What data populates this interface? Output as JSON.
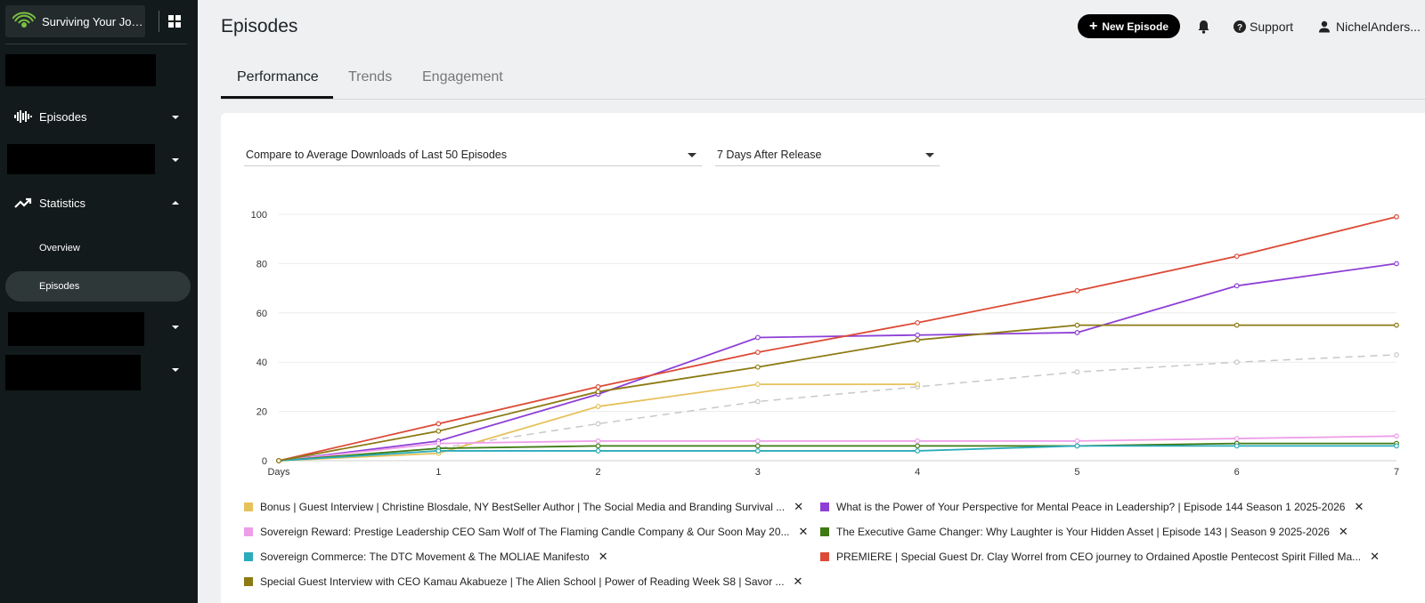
{
  "sidebar": {
    "brand_name": "Surviving Your Jour...",
    "nav": [
      {
        "label": "Episodes",
        "icon": "audio-wave-icon",
        "expanded": false
      },
      {
        "label": "Statistics",
        "icon": "trending-up-icon",
        "expanded": true
      }
    ],
    "sub_items": [
      {
        "label": "Overview",
        "active": false
      },
      {
        "label": "Episodes",
        "active": true
      }
    ]
  },
  "header": {
    "title": "Episodes",
    "new_episode_label": "New Episode",
    "support_label": "Support",
    "user_label": "NichelAnders..."
  },
  "tabs": [
    {
      "label": "Performance",
      "active": true
    },
    {
      "label": "Trends",
      "active": false
    },
    {
      "label": "Engagement",
      "active": false
    }
  ],
  "filters": {
    "compare": "Compare to Average Downloads of Last 50 Episodes",
    "range": "7 Days After Release"
  },
  "chart_data": {
    "type": "line",
    "x": [
      0,
      1,
      2,
      3,
      4,
      5,
      6,
      7
    ],
    "x_tick_labels": [
      "Days",
      "1",
      "2",
      "3",
      "4",
      "5",
      "6",
      "7"
    ],
    "y_ticks": [
      0,
      20,
      40,
      60,
      80,
      100
    ],
    "ylim": [
      0,
      100
    ],
    "xlim": [
      0,
      7
    ],
    "grid": true,
    "legend_placement": "bottom",
    "average": {
      "color": "#c8c8c8",
      "values": [
        0,
        5,
        15,
        24,
        30,
        36,
        40,
        43
      ]
    },
    "series": [
      {
        "name": "Bonus | Guest Interview | Christine Blosdale, NY BestSeller Author | The Social Media and Branding Survival ...",
        "color": "#e6c25c",
        "values": [
          0,
          3,
          22,
          31,
          31,
          null,
          null,
          null
        ]
      },
      {
        "name": "What is the Power of Your Perspective for Mental Peace in Leadership? | Episode 144 Season 1 2025-2026",
        "color": "#8e3fd6",
        "values": [
          0,
          8,
          27,
          50,
          51,
          52,
          71,
          80
        ]
      },
      {
        "name": "Sovereign Reward: Prestige Leadership CEO Sam Wolf of The Flaming Candle Company & Our Soon May 20...",
        "color": "#ee9ee8",
        "values": [
          0,
          7,
          8,
          8,
          8,
          8,
          9,
          10
        ]
      },
      {
        "name": "The Executive Game Changer: Why Laughter is Your Hidden Asset | Episode 143 | Season 9 2025-2026",
        "color": "#3e7a12",
        "values": [
          0,
          5,
          6,
          6,
          6,
          6,
          7,
          7
        ]
      },
      {
        "name": "Sovereign Commerce: The DTC Movement & The MOLIAE Manifesto",
        "color": "#2aacbb",
        "values": [
          0,
          4,
          4,
          4,
          4,
          6,
          6,
          6
        ]
      },
      {
        "name": "PREMIERE | Special Guest Dr. Clay Worrel from CEO journey to Ordained Apostle Pentecost Spirit Filled Ma...",
        "color": "#dc4a36",
        "values": [
          0,
          15,
          30,
          44,
          56,
          69,
          83,
          99
        ]
      },
      {
        "name": "Special Guest Interview with CEO Kamau Akabueze | The Alien School | Power of Reading Week S8 | Savor ...",
        "color": "#8c7a12",
        "values": [
          0,
          12,
          28,
          38,
          49,
          55,
          55,
          55
        ]
      }
    ]
  },
  "colors": {
    "sidebar_bg": "#121a1b",
    "accent": "#000000"
  }
}
